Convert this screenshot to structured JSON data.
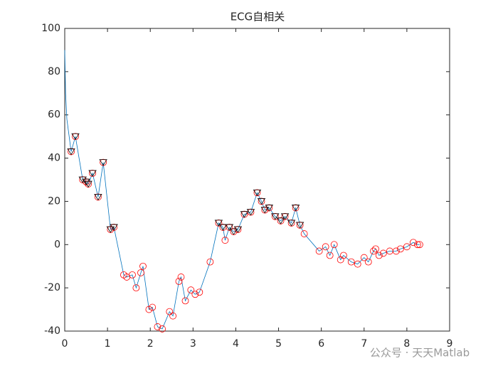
{
  "chart_data": {
    "type": "line",
    "title": "ECG自相关",
    "watermark": "公众号 · 天天Matlab",
    "xlim": [
      0,
      9
    ],
    "xticks": [
      0,
      1,
      2,
      3,
      4,
      5,
      6,
      7,
      8,
      9
    ],
    "ylim": [
      -40,
      100
    ],
    "yticks": [
      -40,
      -20,
      0,
      20,
      40,
      60,
      80,
      100
    ],
    "grid": false,
    "series": [
      {
        "color": "#0072bd",
        "marker": "none",
        "x": [
          0,
          0.02,
          0.05,
          0.15,
          0.25,
          0.42,
          0.5,
          0.55,
          0.65,
          0.78,
          0.9,
          1.07,
          1.15,
          1.38,
          1.45,
          1.58,
          1.67,
          1.78,
          1.83,
          1.97,
          2.05,
          2.17,
          2.28,
          2.45,
          2.53,
          2.67,
          2.72,
          2.82,
          2.95,
          3.05,
          3.15,
          3.4,
          3.6,
          3.7,
          3.75,
          3.85,
          3.95,
          4.05,
          4.2,
          4.35,
          4.5,
          4.6,
          4.68,
          4.78,
          4.92,
          5.05,
          5.15,
          5.3,
          5.4,
          5.5,
          5.6,
          5.95,
          6.1,
          6.2,
          6.3,
          6.45,
          6.52,
          6.7,
          6.85,
          7.0,
          7.1,
          7.22,
          7.27,
          7.35,
          7.45,
          7.6,
          7.75,
          7.85,
          8.0,
          8.15,
          8.25,
          8.3
        ],
        "values": [
          90,
          70,
          58,
          43,
          50,
          30,
          29,
          28,
          33,
          22,
          38,
          7,
          8,
          -14,
          -15,
          -14,
          -20,
          -13,
          -10,
          -30,
          -29,
          -38,
          -39,
          -31,
          -33,
          -17,
          -15,
          -26,
          -21,
          -23,
          -22,
          -8,
          10,
          8,
          2,
          8,
          6,
          7,
          14,
          15,
          24,
          20,
          16,
          17,
          13,
          11,
          13,
          10,
          17,
          9,
          5,
          -3,
          -1,
          -5,
          0,
          -7,
          -5,
          -8,
          -9,
          -6,
          -8,
          -3,
          -2,
          -5,
          -4,
          -3,
          -3,
          -2,
          -1,
          1,
          0,
          0
        ]
      },
      {
        "color": "#ff0000",
        "marker": "circle",
        "x": [
          0.15,
          0.25,
          0.42,
          0.5,
          0.55,
          0.65,
          0.78,
          0.9,
          1.07,
          1.15,
          1.38,
          1.45,
          1.58,
          1.67,
          1.78,
          1.83,
          1.97,
          2.05,
          2.17,
          2.28,
          2.45,
          2.53,
          2.67,
          2.72,
          2.82,
          2.95,
          3.05,
          3.15,
          3.4,
          3.6,
          3.7,
          3.75,
          3.85,
          3.95,
          4.05,
          4.2,
          4.35,
          4.5,
          4.6,
          4.68,
          4.78,
          4.92,
          5.05,
          5.15,
          5.3,
          5.4,
          5.5,
          5.6,
          5.95,
          6.1,
          6.2,
          6.3,
          6.45,
          6.52,
          6.7,
          6.85,
          7.0,
          7.1,
          7.22,
          7.27,
          7.35,
          7.45,
          7.6,
          7.75,
          7.85,
          8.0,
          8.15,
          8.25,
          8.3
        ],
        "values": [
          43,
          50,
          30,
          29,
          28,
          33,
          22,
          38,
          7,
          8,
          -14,
          -15,
          -14,
          -20,
          -13,
          -10,
          -30,
          -29,
          -38,
          -39,
          -31,
          -33,
          -17,
          -15,
          -26,
          -21,
          -23,
          -22,
          -8,
          10,
          8,
          2,
          8,
          6,
          7,
          14,
          15,
          24,
          20,
          16,
          17,
          13,
          11,
          13,
          10,
          17,
          9,
          5,
          -3,
          -1,
          -5,
          0,
          -7,
          -5,
          -8,
          -9,
          -6,
          -8,
          -3,
          -2,
          -5,
          -4,
          -3,
          -3,
          -2,
          -1,
          1,
          0,
          0
        ]
      },
      {
        "color": "#000000",
        "marker": "triangle-down",
        "x": [
          0.15,
          0.25,
          0.42,
          0.5,
          0.55,
          0.65,
          0.78,
          0.9,
          1.07,
          1.15,
          3.6,
          3.7,
          3.85,
          3.95,
          4.05,
          4.2,
          4.35,
          4.5,
          4.6,
          4.68,
          4.78,
          4.92,
          5.05,
          5.15,
          5.3,
          5.4,
          5.5
        ],
        "values": [
          43,
          50,
          30,
          29,
          28,
          33,
          22,
          38,
          7,
          8,
          10,
          8,
          8,
          6,
          7,
          14,
          15,
          24,
          20,
          16,
          17,
          13,
          11,
          13,
          10,
          17,
          9
        ]
      }
    ]
  }
}
